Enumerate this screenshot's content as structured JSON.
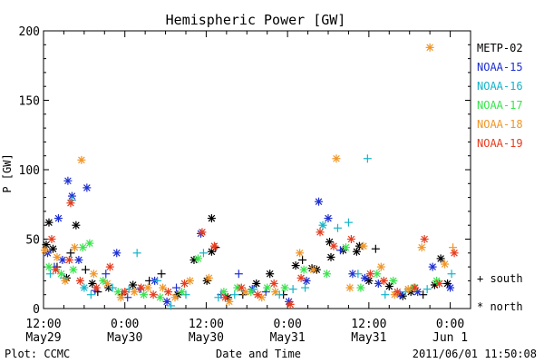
{
  "chart_data": {
    "type": "scatter",
    "title": "Hemispheric Power [GW]",
    "ylabel": "P [GW]",
    "xlabel": "Date and Time",
    "ylim": [
      0,
      200
    ],
    "yticks": [
      0,
      50,
      100,
      150,
      200
    ],
    "xlim": [
      0,
      63
    ],
    "x_unit": "hours since 2011-05-29 12:00 UT",
    "xticks": [
      {
        "x": 0,
        "line1": "12:00",
        "line2": "May29"
      },
      {
        "x": 12,
        "line1": "0:00",
        "line2": "May30"
      },
      {
        "x": 24,
        "line1": "12:00",
        "line2": "May30"
      },
      {
        "x": 36,
        "line1": "0:00",
        "line2": "May31"
      },
      {
        "x": 48,
        "line1": "12:00",
        "line2": "May31"
      },
      {
        "x": 60,
        "line1": "0:00",
        "line2": "Jun 1"
      }
    ],
    "legend_marker_south": "+ south",
    "legend_marker_north": "* north",
    "footer_left": "Plot: CCMC",
    "footer_right": "2011/06/01 11:50:08",
    "series": [
      {
        "name": "METP-02",
        "color": "#000000",
        "points": [
          {
            "x": 0.4,
            "y": 46,
            "m": "north"
          },
          {
            "x": 0.8,
            "y": 62,
            "m": "north"
          },
          {
            "x": 1.4,
            "y": 43,
            "m": "north"
          },
          {
            "x": 2.0,
            "y": 30,
            "m": "south"
          },
          {
            "x": 3.4,
            "y": 22,
            "m": "north"
          },
          {
            "x": 4.0,
            "y": 40,
            "m": "south"
          },
          {
            "x": 4.8,
            "y": 60,
            "m": "north"
          },
          {
            "x": 6.2,
            "y": 28,
            "m": "south"
          },
          {
            "x": 7.2,
            "y": 18,
            "m": "north"
          },
          {
            "x": 8.0,
            "y": 12,
            "m": "south"
          },
          {
            "x": 9.6,
            "y": 15,
            "m": "north"
          },
          {
            "x": 11.6,
            "y": 10,
            "m": "south"
          },
          {
            "x": 13.2,
            "y": 17,
            "m": "north"
          },
          {
            "x": 15.6,
            "y": 20,
            "m": "south"
          },
          {
            "x": 17.4,
            "y": 25,
            "m": "south"
          },
          {
            "x": 19.8,
            "y": 10,
            "m": "north"
          },
          {
            "x": 22.2,
            "y": 35,
            "m": "north"
          },
          {
            "x": 24.1,
            "y": 20,
            "m": "north"
          },
          {
            "x": 24.8,
            "y": 41,
            "m": "north"
          },
          {
            "x": 24.8,
            "y": 65,
            "m": "north"
          },
          {
            "x": 25.4,
            "y": 44,
            "m": "south"
          },
          {
            "x": 27.2,
            "y": 8,
            "m": "north"
          },
          {
            "x": 29.4,
            "y": 10,
            "m": "south"
          },
          {
            "x": 31.4,
            "y": 18,
            "m": "north"
          },
          {
            "x": 33.4,
            "y": 25,
            "m": "north"
          },
          {
            "x": 35.4,
            "y": 10,
            "m": "south"
          },
          {
            "x": 37.2,
            "y": 31,
            "m": "north"
          },
          {
            "x": 38.2,
            "y": 35,
            "m": "south"
          },
          {
            "x": 39.6,
            "y": 29,
            "m": "north"
          },
          {
            "x": 40.3,
            "y": 28,
            "m": "north"
          },
          {
            "x": 42.2,
            "y": 48,
            "m": "north"
          },
          {
            "x": 42.4,
            "y": 37,
            "m": "north"
          },
          {
            "x": 44.2,
            "y": 42,
            "m": "north"
          },
          {
            "x": 46.2,
            "y": 41,
            "m": "north"
          },
          {
            "x": 46.6,
            "y": 45,
            "m": "north"
          },
          {
            "x": 48.0,
            "y": 20,
            "m": "north"
          },
          {
            "x": 49.0,
            "y": 43,
            "m": "south"
          },
          {
            "x": 51.0,
            "y": 16,
            "m": "north"
          },
          {
            "x": 53.0,
            "y": 9,
            "m": "north"
          },
          {
            "x": 54.2,
            "y": 12,
            "m": "north"
          },
          {
            "x": 56.0,
            "y": 10,
            "m": "south"
          },
          {
            "x": 57.7,
            "y": 17,
            "m": "north"
          },
          {
            "x": 58.6,
            "y": 36,
            "m": "north"
          },
          {
            "x": 59.6,
            "y": 18,
            "m": "north"
          }
        ]
      },
      {
        "name": "NOAA-15",
        "color": "#1e2fd0",
        "points": [
          {
            "x": 0.6,
            "y": 40,
            "m": "north"
          },
          {
            "x": 1.6,
            "y": 30,
            "m": "south"
          },
          {
            "x": 2.2,
            "y": 65,
            "m": "north"
          },
          {
            "x": 2.8,
            "y": 35,
            "m": "north"
          },
          {
            "x": 3.6,
            "y": 92,
            "m": "north"
          },
          {
            "x": 4.2,
            "y": 81,
            "m": "north"
          },
          {
            "x": 5.2,
            "y": 35,
            "m": "north"
          },
          {
            "x": 6.4,
            "y": 87,
            "m": "north"
          },
          {
            "x": 7.6,
            "y": 13,
            "m": "south"
          },
          {
            "x": 9.2,
            "y": 25,
            "m": "south"
          },
          {
            "x": 10.8,
            "y": 40,
            "m": "north"
          },
          {
            "x": 12.4,
            "y": 8,
            "m": "south"
          },
          {
            "x": 14.2,
            "y": 14,
            "m": "south"
          },
          {
            "x": 16.4,
            "y": 20,
            "m": "north"
          },
          {
            "x": 18.2,
            "y": 5,
            "m": "north"
          },
          {
            "x": 19.6,
            "y": 15,
            "m": "south"
          },
          {
            "x": 23.2,
            "y": 54,
            "m": "north"
          },
          {
            "x": 26.2,
            "y": 10,
            "m": "south"
          },
          {
            "x": 28.8,
            "y": 25,
            "m": "south"
          },
          {
            "x": 30.8,
            "y": 14,
            "m": "north"
          },
          {
            "x": 32.8,
            "y": 12,
            "m": "south"
          },
          {
            "x": 36.2,
            "y": 5,
            "m": "north"
          },
          {
            "x": 38.8,
            "y": 20,
            "m": "north"
          },
          {
            "x": 40.6,
            "y": 77,
            "m": "north"
          },
          {
            "x": 42.0,
            "y": 65,
            "m": "north"
          },
          {
            "x": 43.8,
            "y": 42,
            "m": "south"
          },
          {
            "x": 45.6,
            "y": 25,
            "m": "north"
          },
          {
            "x": 47.4,
            "y": 22,
            "m": "north"
          },
          {
            "x": 49.4,
            "y": 18,
            "m": "north"
          },
          {
            "x": 52.6,
            "y": 10,
            "m": "north"
          },
          {
            "x": 55.2,
            "y": 12,
            "m": "north"
          },
          {
            "x": 57.4,
            "y": 30,
            "m": "north"
          },
          {
            "x": 60.0,
            "y": 15,
            "m": "north"
          }
        ]
      },
      {
        "name": "NOAA-16",
        "color": "#14b4c8",
        "points": [
          {
            "x": 1.0,
            "y": 25,
            "m": "south"
          },
          {
            "x": 3.0,
            "y": 22,
            "m": "south"
          },
          {
            "x": 4.2,
            "y": 78,
            "m": "south"
          },
          {
            "x": 6.0,
            "y": 15,
            "m": "north"
          },
          {
            "x": 7.0,
            "y": 10,
            "m": "south"
          },
          {
            "x": 10.2,
            "y": 15,
            "m": "south"
          },
          {
            "x": 12.6,
            "y": 14,
            "m": "south"
          },
          {
            "x": 13.8,
            "y": 40,
            "m": "south"
          },
          {
            "x": 16.8,
            "y": 20,
            "m": "south"
          },
          {
            "x": 18.8,
            "y": 2,
            "m": "south"
          },
          {
            "x": 21.0,
            "y": 10,
            "m": "south"
          },
          {
            "x": 23.6,
            "y": 40,
            "m": "south"
          },
          {
            "x": 25.8,
            "y": 8,
            "m": "south"
          },
          {
            "x": 28.2,
            "y": 10,
            "m": "south"
          },
          {
            "x": 31.0,
            "y": 14,
            "m": "south"
          },
          {
            "x": 34.8,
            "y": 10,
            "m": "south"
          },
          {
            "x": 36.8,
            "y": 14,
            "m": "south"
          },
          {
            "x": 38.6,
            "y": 15,
            "m": "south"
          },
          {
            "x": 41.2,
            "y": 60,
            "m": "north"
          },
          {
            "x": 43.4,
            "y": 58,
            "m": "south"
          },
          {
            "x": 45.0,
            "y": 62,
            "m": "south"
          },
          {
            "x": 46.4,
            "y": 25,
            "m": "south"
          },
          {
            "x": 47.8,
            "y": 108,
            "m": "south"
          },
          {
            "x": 50.4,
            "y": 10,
            "m": "south"
          },
          {
            "x": 53.4,
            "y": 12,
            "m": "south"
          },
          {
            "x": 56.6,
            "y": 14,
            "m": "south"
          },
          {
            "x": 60.2,
            "y": 25,
            "m": "south"
          }
        ]
      },
      {
        "name": "NOAA-17",
        "color": "#38e44c",
        "points": [
          {
            "x": 0.8,
            "y": 30,
            "m": "north"
          },
          {
            "x": 2.6,
            "y": 25,
            "m": "north"
          },
          {
            "x": 4.4,
            "y": 28,
            "m": "north"
          },
          {
            "x": 5.8,
            "y": 44,
            "m": "north"
          },
          {
            "x": 6.8,
            "y": 47,
            "m": "north"
          },
          {
            "x": 8.8,
            "y": 20,
            "m": "north"
          },
          {
            "x": 11.0,
            "y": 12,
            "m": "north"
          },
          {
            "x": 14.8,
            "y": 10,
            "m": "north"
          },
          {
            "x": 17.2,
            "y": 8,
            "m": "north"
          },
          {
            "x": 20.4,
            "y": 12,
            "m": "north"
          },
          {
            "x": 22.8,
            "y": 36,
            "m": "north"
          },
          {
            "x": 26.6,
            "y": 12,
            "m": "north"
          },
          {
            "x": 28.6,
            "y": 15,
            "m": "north"
          },
          {
            "x": 30.6,
            "y": 12,
            "m": "north"
          },
          {
            "x": 33.0,
            "y": 15,
            "m": "north"
          },
          {
            "x": 35.6,
            "y": 15,
            "m": "north"
          },
          {
            "x": 38.4,
            "y": 28,
            "m": "north"
          },
          {
            "x": 41.8,
            "y": 25,
            "m": "north"
          },
          {
            "x": 44.6,
            "y": 44,
            "m": "north"
          },
          {
            "x": 46.8,
            "y": 15,
            "m": "north"
          },
          {
            "x": 49.2,
            "y": 25,
            "m": "north"
          },
          {
            "x": 51.6,
            "y": 20,
            "m": "north"
          },
          {
            "x": 54.6,
            "y": 15,
            "m": "north"
          },
          {
            "x": 58.0,
            "y": 20,
            "m": "north"
          }
        ]
      },
      {
        "name": "NOAA-18",
        "color": "#f09628",
        "points": [
          {
            "x": 0.2,
            "y": 42,
            "m": "north"
          },
          {
            "x": 2.0,
            "y": 37,
            "m": "north"
          },
          {
            "x": 3.2,
            "y": 20,
            "m": "north"
          },
          {
            "x": 4.6,
            "y": 44,
            "m": "north"
          },
          {
            "x": 5.6,
            "y": 107,
            "m": "north"
          },
          {
            "x": 7.4,
            "y": 25,
            "m": "north"
          },
          {
            "x": 9.4,
            "y": 18,
            "m": "north"
          },
          {
            "x": 11.4,
            "y": 8,
            "m": "north"
          },
          {
            "x": 13.4,
            "y": 12,
            "m": "north"
          },
          {
            "x": 15.4,
            "y": 15,
            "m": "north"
          },
          {
            "x": 17.6,
            "y": 15,
            "m": "north"
          },
          {
            "x": 19.4,
            "y": 8,
            "m": "north"
          },
          {
            "x": 21.6,
            "y": 20,
            "m": "north"
          },
          {
            "x": 24.4,
            "y": 22,
            "m": "north"
          },
          {
            "x": 27.4,
            "y": 5,
            "m": "north"
          },
          {
            "x": 29.8,
            "y": 12,
            "m": "north"
          },
          {
            "x": 32.2,
            "y": 8,
            "m": "north"
          },
          {
            "x": 34.2,
            "y": 12,
            "m": "north"
          },
          {
            "x": 37.8,
            "y": 40,
            "m": "north"
          },
          {
            "x": 39.8,
            "y": 28,
            "m": "north"
          },
          {
            "x": 43.2,
            "y": 108,
            "m": "north"
          },
          {
            "x": 45.2,
            "y": 15,
            "m": "north"
          },
          {
            "x": 47.2,
            "y": 45,
            "m": "north"
          },
          {
            "x": 49.8,
            "y": 30,
            "m": "north"
          },
          {
            "x": 51.8,
            "y": 10,
            "m": "north"
          },
          {
            "x": 53.8,
            "y": 14,
            "m": "north"
          },
          {
            "x": 55.8,
            "y": 44,
            "m": "north"
          },
          {
            "x": 57.0,
            "y": 188,
            "m": "north"
          },
          {
            "x": 59.2,
            "y": 32,
            "m": "north"
          },
          {
            "x": 60.4,
            "y": 44,
            "m": "south"
          }
        ]
      },
      {
        "name": "NOAA-19",
        "color": "#e63c1e",
        "points": [
          {
            "x": 1.2,
            "y": 50,
            "m": "north"
          },
          {
            "x": 1.8,
            "y": 28,
            "m": "north"
          },
          {
            "x": 3.8,
            "y": 35,
            "m": "north"
          },
          {
            "x": 4.0,
            "y": 76,
            "m": "north"
          },
          {
            "x": 5.4,
            "y": 20,
            "m": "north"
          },
          {
            "x": 7.8,
            "y": 15,
            "m": "north"
          },
          {
            "x": 9.8,
            "y": 30,
            "m": "north"
          },
          {
            "x": 12.0,
            "y": 12,
            "m": "north"
          },
          {
            "x": 14.4,
            "y": 15,
            "m": "north"
          },
          {
            "x": 16.2,
            "y": 10,
            "m": "north"
          },
          {
            "x": 18.4,
            "y": 12,
            "m": "north"
          },
          {
            "x": 20.8,
            "y": 18,
            "m": "north"
          },
          {
            "x": 23.4,
            "y": 55,
            "m": "north"
          },
          {
            "x": 25.2,
            "y": 45,
            "m": "north"
          },
          {
            "x": 26.8,
            "y": 8,
            "m": "north"
          },
          {
            "x": 29.2,
            "y": 15,
            "m": "north"
          },
          {
            "x": 31.6,
            "y": 10,
            "m": "north"
          },
          {
            "x": 34.0,
            "y": 18,
            "m": "north"
          },
          {
            "x": 36.4,
            "y": 3,
            "m": "north"
          },
          {
            "x": 38.0,
            "y": 22,
            "m": "north"
          },
          {
            "x": 40.8,
            "y": 55,
            "m": "north"
          },
          {
            "x": 42.8,
            "y": 45,
            "m": "north"
          },
          {
            "x": 45.4,
            "y": 50,
            "m": "north"
          },
          {
            "x": 48.2,
            "y": 25,
            "m": "north"
          },
          {
            "x": 50.2,
            "y": 20,
            "m": "north"
          },
          {
            "x": 52.2,
            "y": 12,
            "m": "north"
          },
          {
            "x": 54.8,
            "y": 15,
            "m": "north"
          },
          {
            "x": 56.2,
            "y": 50,
            "m": "north"
          },
          {
            "x": 58.4,
            "y": 18,
            "m": "north"
          },
          {
            "x": 60.6,
            "y": 40,
            "m": "north"
          }
        ]
      }
    ]
  }
}
